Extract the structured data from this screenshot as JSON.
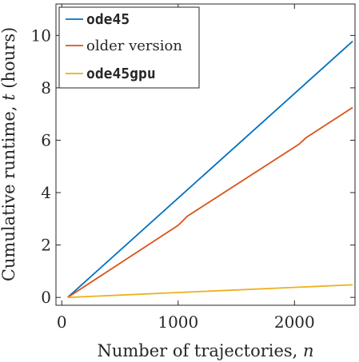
{
  "chart_data": {
    "type": "line",
    "xlabel_text": "Number of trajectories, ",
    "xlabel_var": "n",
    "ylabel_text": "Cumulative runtime, ",
    "ylabel_var": "t",
    "ylabel_suffix": " (hours)",
    "xlim": [
      -50,
      2520
    ],
    "ylim": [
      -0.3,
      11.2
    ],
    "xticks": [
      0,
      1000,
      2000
    ],
    "xtick_labels": [
      "0",
      "1000",
      "2000"
    ],
    "yticks": [
      0,
      2,
      4,
      6,
      8,
      10
    ],
    "ytick_labels": [
      "0",
      "2",
      "4",
      "6",
      "8",
      "10"
    ],
    "grid": false,
    "legend_position": "top-left",
    "series": [
      {
        "name": "ode45",
        "color": "#0072BD",
        "x": [
          50,
          2500
        ],
        "y": [
          0.0,
          9.78
        ]
      },
      {
        "name": "older version",
        "color": "#D95319",
        "x": [
          50,
          1000,
          1080,
          2040,
          2100,
          2500
        ],
        "y": [
          0.0,
          2.75,
          3.1,
          5.85,
          6.1,
          7.25
        ]
      },
      {
        "name": "ode45gpu",
        "color": "#EDB120",
        "x": [
          50,
          2500
        ],
        "y": [
          0.0,
          0.48
        ]
      }
    ]
  }
}
